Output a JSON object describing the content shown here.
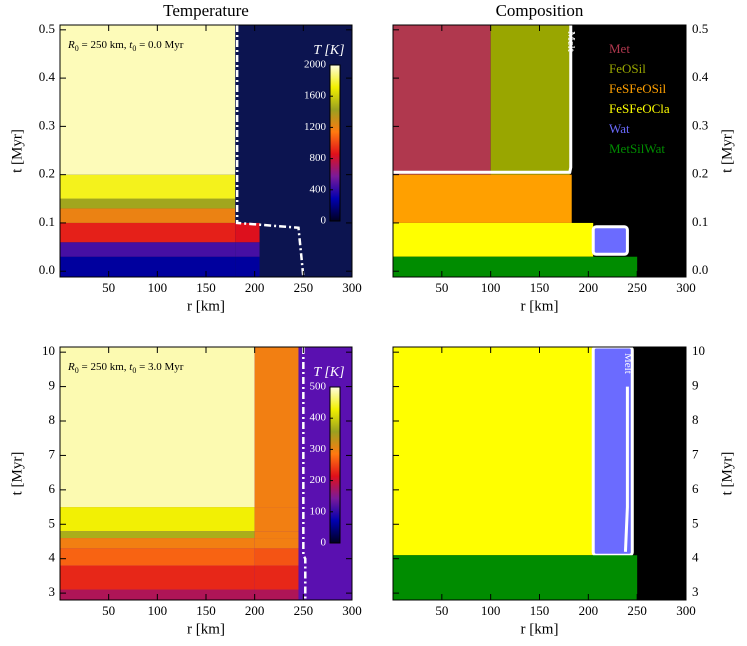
{
  "chart_data": [
    {
      "type": "heatmap",
      "title": "Temperature",
      "annotation": [
        {
          "text": "R",
          "style": "italic"
        },
        {
          "text": "0",
          "style": "subscript"
        },
        {
          "text": " = 250 km, ",
          "style": "normal"
        },
        {
          "text": "t",
          "style": "italic"
        },
        {
          "text": "0",
          "style": "subscript"
        },
        {
          "text": " = 0.0 Myr",
          "style": "normal"
        }
      ],
      "xlabel": "r [km]",
      "ylabel": "t [Myr]",
      "xlim": [
        0,
        300
      ],
      "xticks": [
        50,
        100,
        150,
        200,
        250,
        300
      ],
      "ylim": [
        -0.012,
        0.51
      ],
      "yticks": [
        {
          "value": 0,
          "label": "0.0"
        },
        0.1,
        0.2,
        0.3,
        0.4,
        0.5
      ],
      "x_edges": [
        0,
        180,
        205,
        250
      ],
      "y_edges": [
        -0.012,
        0.03,
        0.06,
        0.1,
        0.13,
        0.15,
        0.2,
        0.51
      ],
      "values": [
        [
          250,
          250,
          null
        ],
        [
          450,
          450,
          null
        ],
        [
          900,
          850,
          null
        ],
        [
          1200,
          null,
          null
        ],
        [
          1450,
          null,
          null
        ],
        [
          1750,
          null,
          null
        ],
        [
          1950,
          null,
          null
        ]
      ],
      "background": "#0c1450",
      "colormap": [
        "#000020",
        "#0000b0",
        "#7a1a9a",
        "#e0101a",
        "#ff7a10",
        "#9aa020",
        "#f2f000",
        "#fffde0"
      ],
      "colorbar_label": "T [K]",
      "colorbar_lim": [
        0,
        2000
      ],
      "colorbar_ticks": [
        0,
        400,
        800,
        1200,
        1600,
        2000
      ],
      "boundary": {
        "x": [
          182,
          182,
          245,
          248,
          250
        ],
        "y": [
          0.51,
          0.1,
          0.09,
          0.03,
          -0.012
        ]
      }
    },
    {
      "type": "regions",
      "title": "Composition",
      "xlabel": "r [km]",
      "ylabel": "t [Myr]",
      "y_axis_position": "right",
      "xlim": [
        0,
        300
      ],
      "xticks": [
        50,
        100,
        150,
        200,
        250,
        300
      ],
      "ylim": [
        -0.012,
        0.51
      ],
      "yticks": [
        {
          "value": 0,
          "label": "0.0"
        },
        0.1,
        0.2,
        0.3,
        0.4,
        0.5
      ],
      "background": "#000000",
      "regions": [
        {
          "color": "#b0384e",
          "r": [
            0,
            100
          ],
          "t": [
            0.2,
            0.51
          ]
        },
        {
          "color": "#99a600",
          "r": [
            100,
            181
          ],
          "t": [
            0.2,
            0.51
          ]
        },
        {
          "color": "#ffa000",
          "r": [
            0,
            183
          ],
          "t": [
            0.1,
            0.2
          ]
        },
        {
          "color": "#ffff00",
          "r": [
            0,
            205
          ],
          "t": [
            0.03,
            0.1
          ]
        },
        {
          "color": "#6b6bff",
          "r": [
            205,
            240
          ],
          "t": [
            0.035,
            0.092
          ],
          "edgecolor": "#ffffff"
        },
        {
          "color": "#008c00",
          "r": [
            0,
            250
          ],
          "t": [
            -0.012,
            0.03
          ]
        }
      ],
      "legend": [
        {
          "name": "Met",
          "color": "#b0384e"
        },
        {
          "name": "FeOSil",
          "color": "#99a600"
        },
        {
          "name": "FeSFeOSil",
          "color": "#ffa000"
        },
        {
          "name": "FeSFeOCla",
          "color": "#ffff00"
        },
        {
          "name": "Wat",
          "color": "#6b6bff"
        },
        {
          "name": "MetSilWat",
          "color": "#008c00"
        }
      ],
      "melt_label": "Melt",
      "melt_line": {
        "x": [
          0,
          181,
          182,
          182
        ],
        "y": [
          0.205,
          0.205,
          0.215,
          0.51
        ]
      }
    },
    {
      "type": "heatmap",
      "annotation": [
        {
          "text": "R",
          "style": "italic"
        },
        {
          "text": "0",
          "style": "subscript"
        },
        {
          "text": " = 250 km, ",
          "style": "normal"
        },
        {
          "text": "t",
          "style": "italic"
        },
        {
          "text": "0",
          "style": "subscript"
        },
        {
          "text": " = 3.0 Myr",
          "style": "normal"
        }
      ],
      "xlabel": "r [km]",
      "ylabel": "t [Myr]",
      "xlim": [
        0,
        300
      ],
      "xticks": [
        50,
        100,
        150,
        200,
        250,
        300
      ],
      "ylim": [
        2.8,
        10.15
      ],
      "yticks": [
        3,
        4,
        5,
        6,
        7,
        8,
        9,
        10
      ],
      "x_edges": [
        0,
        200,
        245
      ],
      "y_edges": [
        2.8,
        3.1,
        3.8,
        4.3,
        4.6,
        4.8,
        5.5,
        10.15
      ],
      "values": [
        [
          180,
          180
        ],
        [
          230,
          230
        ],
        [
          270,
          260
        ],
        [
          295,
          295
        ],
        [
          370,
          295
        ],
        [
          430,
          295
        ],
        [
          485,
          295
        ]
      ],
      "background": "#5a10b0",
      "colormap": [
        "#000020",
        "#0000b0",
        "#7a1a9a",
        "#e0101a",
        "#ff7a10",
        "#9aa020",
        "#f2f000",
        "#fffde0"
      ],
      "colorbar_label": "T [K]",
      "colorbar_lim": [
        0,
        500
      ],
      "colorbar_ticks": [
        0,
        100,
        200,
        300,
        400,
        500
      ],
      "boundary": {
        "x": [
          250,
          250,
          252,
          252
        ],
        "y": [
          10.15,
          4.1,
          4.0,
          2.8
        ]
      }
    },
    {
      "type": "regions",
      "xlabel": "r [km]",
      "ylabel": "t [Myr]",
      "y_axis_position": "right",
      "xlim": [
        0,
        300
      ],
      "xticks": [
        50,
        100,
        150,
        200,
        250,
        300
      ],
      "ylim": [
        2.8,
        10.15
      ],
      "yticks": [
        3,
        4,
        5,
        6,
        7,
        8,
        9,
        10
      ],
      "background": "#000000",
      "regions": [
        {
          "color": "#ffff00",
          "r": [
            0,
            205
          ],
          "t": [
            4.1,
            10.15
          ]
        },
        {
          "color": "#6b6bff",
          "r": [
            205,
            245
          ],
          "t": [
            4.1,
            10.15
          ],
          "edgecolor": "#ffffff"
        },
        {
          "color": "#008c00",
          "r": [
            0,
            250
          ],
          "t": [
            2.8,
            4.1
          ]
        }
      ],
      "melt_label": "Melt",
      "melt_line": {
        "x": [
          238,
          240,
          240
        ],
        "y": [
          4.2,
          5.5,
          9.0
        ]
      }
    }
  ]
}
